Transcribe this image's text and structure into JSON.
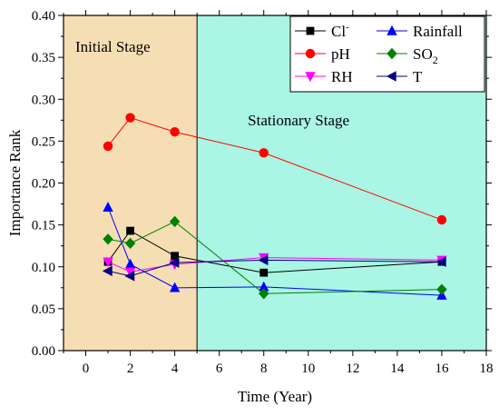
{
  "chart_data": {
    "type": "line",
    "xlabel": "Time (Year)",
    "ylabel": "Importance Rank",
    "xlim": [
      -1,
      18
    ],
    "ylim": [
      0.0,
      0.4
    ],
    "xticks": [
      0,
      2,
      4,
      6,
      8,
      10,
      12,
      14,
      16,
      18
    ],
    "yticks": [
      "0.00",
      "0.05",
      "0.10",
      "0.15",
      "0.20",
      "0.25",
      "0.30",
      "0.35",
      "0.40"
    ],
    "regions": [
      {
        "label": "Initial Stage",
        "x_range": [
          -1,
          5
        ],
        "color": "#f5deb3"
      },
      {
        "label": "Stationary Stage",
        "x_range": [
          5,
          18
        ],
        "color": "#aaf5e3"
      }
    ],
    "legend_position": "top-right",
    "series": [
      {
        "name": "Cl-",
        "display": "Cl",
        "sup": "-",
        "color": "#000000",
        "marker": "square",
        "x": [
          1,
          2,
          4,
          8,
          16
        ],
        "values": [
          0.106,
          0.143,
          0.113,
          0.093,
          0.106
        ]
      },
      {
        "name": "Rainfall",
        "color": "#0000ff",
        "marker": "triangle-up",
        "x": [
          1,
          2,
          4,
          8,
          16
        ],
        "values": [
          0.171,
          0.103,
          0.075,
          0.076,
          0.066
        ]
      },
      {
        "name": "pH",
        "color": "#ff0000",
        "marker": "circle",
        "x": [
          1,
          2,
          4,
          8,
          16
        ],
        "values": [
          0.244,
          0.278,
          0.261,
          0.236,
          0.156
        ]
      },
      {
        "name": "SO2",
        "display": "SO",
        "sub": "2",
        "color": "#008000",
        "marker": "diamond",
        "x": [
          1,
          2,
          4,
          8,
          16
        ],
        "values": [
          0.133,
          0.128,
          0.154,
          0.068,
          0.073
        ]
      },
      {
        "name": "RH",
        "color": "#ff00ff",
        "marker": "triangle-down",
        "x": [
          1,
          2,
          4,
          8,
          16
        ],
        "values": [
          0.106,
          0.094,
          0.103,
          0.111,
          0.108
        ]
      },
      {
        "name": "T",
        "color": "#000080",
        "marker": "triangle-left",
        "x": [
          1,
          2,
          4,
          8,
          16
        ],
        "values": [
          0.095,
          0.089,
          0.105,
          0.108,
          0.106
        ]
      }
    ]
  }
}
